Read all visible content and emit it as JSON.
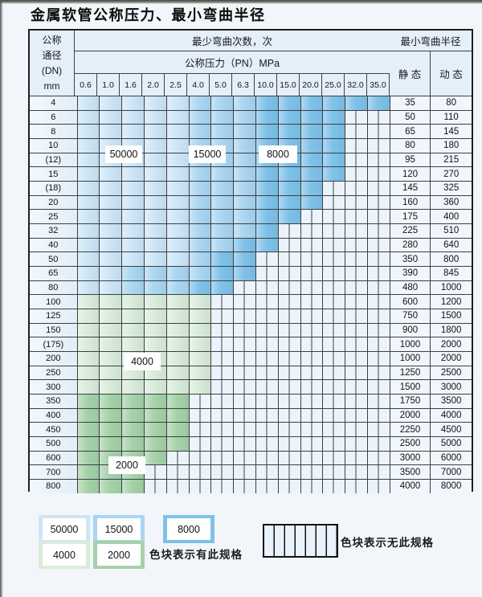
{
  "title": "金属软管公称压力、最小弯曲半径",
  "colors": {
    "cycles_50000": "#cde6f7",
    "cycles_15000": "#a9d6f1",
    "cycles_8000": "#7fc2e9",
    "cycles_4000": "#d9ecda",
    "cycles_2000": "#a5d2a8",
    "no_spec_hatch_bg": "#ecf3fb",
    "grid_line": "#3b4045"
  },
  "chart_data": {
    "type": "table",
    "title": "金属软管公称压力、最小弯曲半径",
    "header": {
      "dn_lines": [
        "公称",
        "通径",
        "(DN)",
        "mm"
      ],
      "cycles_group": "最少弯曲次数，次",
      "pressure_group": "公称压力（PN）MPa",
      "radius_group": "最小弯曲半径",
      "static_label": "静 态",
      "dynamic_label": "动 态",
      "pressure_ticks": [
        "0.6",
        "1.0",
        "1.6",
        "2.0",
        "2.5",
        "4.0",
        "5.0",
        "6.3",
        "10.0",
        "15.0",
        "20.0",
        "25.0",
        "32.0",
        "35.0"
      ]
    },
    "zone_meaning": "彩色格 = 有此规格(最少弯曲次数), 竖线格 = 无此规格",
    "rows": [
      {
        "dn": "4",
        "static": "35",
        "dynamic": "80",
        "zones": [
          [
            "50000",
            5
          ],
          [
            "15000",
            3
          ],
          [
            "8000",
            6
          ]
        ]
      },
      {
        "dn": "6",
        "static": "50",
        "dynamic": "110",
        "zones": [
          [
            "50000",
            5
          ],
          [
            "15000",
            3
          ],
          [
            "8000",
            4
          ]
        ]
      },
      {
        "dn": "8",
        "static": "65",
        "dynamic": "145",
        "zones": [
          [
            "50000",
            5
          ],
          [
            "15000",
            3
          ],
          [
            "8000",
            4
          ]
        ]
      },
      {
        "dn": "10",
        "static": "80",
        "dynamic": "180",
        "zones": [
          [
            "50000",
            5
          ],
          [
            "15000",
            3
          ],
          [
            "8000",
            4
          ]
        ]
      },
      {
        "dn": "(12)",
        "static": "95",
        "dynamic": "215",
        "zones": [
          [
            "50000",
            5
          ],
          [
            "15000",
            3
          ],
          [
            "8000",
            4
          ]
        ]
      },
      {
        "dn": "15",
        "static": "120",
        "dynamic": "270",
        "zones": [
          [
            "50000",
            5
          ],
          [
            "15000",
            3
          ],
          [
            "8000",
            4
          ]
        ]
      },
      {
        "dn": "(18)",
        "static": "145",
        "dynamic": "325",
        "zones": [
          [
            "50000",
            5
          ],
          [
            "15000",
            3
          ],
          [
            "8000",
            3
          ]
        ]
      },
      {
        "dn": "20",
        "static": "160",
        "dynamic": "360",
        "zones": [
          [
            "50000",
            5
          ],
          [
            "15000",
            3
          ],
          [
            "8000",
            3
          ]
        ]
      },
      {
        "dn": "25",
        "static": "175",
        "dynamic": "400",
        "zones": [
          [
            "50000",
            5
          ],
          [
            "15000",
            3
          ],
          [
            "8000",
            2
          ]
        ]
      },
      {
        "dn": "32",
        "static": "225",
        "dynamic": "510",
        "zones": [
          [
            "50000",
            5
          ],
          [
            "15000",
            3
          ],
          [
            "8000",
            1
          ]
        ]
      },
      {
        "dn": "40",
        "static": "280",
        "dynamic": "640",
        "zones": [
          [
            "50000",
            5
          ],
          [
            "15000",
            2
          ],
          [
            "8000",
            2
          ]
        ]
      },
      {
        "dn": "50",
        "static": "350",
        "dynamic": "800",
        "zones": [
          [
            "50000",
            5
          ],
          [
            "15000",
            1
          ],
          [
            "8000",
            2
          ]
        ]
      },
      {
        "dn": "65",
        "static": "390",
        "dynamic": "845",
        "zones": [
          [
            "50000",
            2
          ],
          [
            "15000",
            4
          ],
          [
            "8000",
            2
          ]
        ]
      },
      {
        "dn": "80",
        "static": "480",
        "dynamic": "1000",
        "zones": [
          [
            "50000",
            2
          ],
          [
            "15000",
            3
          ],
          [
            "8000",
            2
          ]
        ]
      },
      {
        "dn": "100",
        "static": "600",
        "dynamic": "1200",
        "zones": [
          [
            "4000",
            6
          ]
        ]
      },
      {
        "dn": "125",
        "static": "750",
        "dynamic": "1500",
        "zones": [
          [
            "4000",
            6
          ]
        ]
      },
      {
        "dn": "150",
        "static": "900",
        "dynamic": "1800",
        "zones": [
          [
            "4000",
            6
          ]
        ]
      },
      {
        "dn": "(175)",
        "static": "1000",
        "dynamic": "2000",
        "zones": [
          [
            "4000",
            6
          ]
        ]
      },
      {
        "dn": "200",
        "static": "1000",
        "dynamic": "2000",
        "zones": [
          [
            "4000",
            6
          ]
        ]
      },
      {
        "dn": "250",
        "static": "1250",
        "dynamic": "2500",
        "zones": [
          [
            "4000",
            6
          ]
        ]
      },
      {
        "dn": "300",
        "static": "1500",
        "dynamic": "3000",
        "zones": [
          [
            "4000",
            6
          ]
        ]
      },
      {
        "dn": "350",
        "static": "1750",
        "dynamic": "3500",
        "zones": [
          [
            "2000",
            5
          ]
        ]
      },
      {
        "dn": "400",
        "static": "2000",
        "dynamic": "4000",
        "zones": [
          [
            "2000",
            5
          ]
        ]
      },
      {
        "dn": "450",
        "static": "2250",
        "dynamic": "4500",
        "zones": [
          [
            "2000",
            5
          ]
        ]
      },
      {
        "dn": "500",
        "static": "2500",
        "dynamic": "5000",
        "zones": [
          [
            "2000",
            5
          ]
        ]
      },
      {
        "dn": "600",
        "static": "3000",
        "dynamic": "6000",
        "zones": [
          [
            "2000",
            4
          ]
        ]
      },
      {
        "dn": "700",
        "static": "3500",
        "dynamic": "7000",
        "zones": [
          [
            "2000",
            3
          ]
        ]
      },
      {
        "dn": "800",
        "static": "4000",
        "dynamic": "8000",
        "zones": [
          [
            "2000",
            3
          ]
        ]
      }
    ]
  },
  "overlay_labels": [
    {
      "id": "lbl-50000",
      "text": "50000"
    },
    {
      "id": "lbl-15000",
      "text": "15000"
    },
    {
      "id": "lbl-8000",
      "text": "8000"
    },
    {
      "id": "lbl-4000",
      "text": "4000"
    },
    {
      "id": "lbl-2000",
      "text": "2000"
    }
  ],
  "legend": {
    "blue_items": [
      {
        "value": "50000",
        "zone": "50000"
      },
      {
        "value": "15000",
        "zone": "15000"
      },
      {
        "value": "8000",
        "zone": "8000"
      }
    ],
    "green_items": [
      {
        "value": "4000",
        "zone": "4000"
      },
      {
        "value": "2000",
        "zone": "2000"
      }
    ],
    "has_spec_label": "色块表示有此规格",
    "no_spec_label": "色块表示无此规格"
  }
}
